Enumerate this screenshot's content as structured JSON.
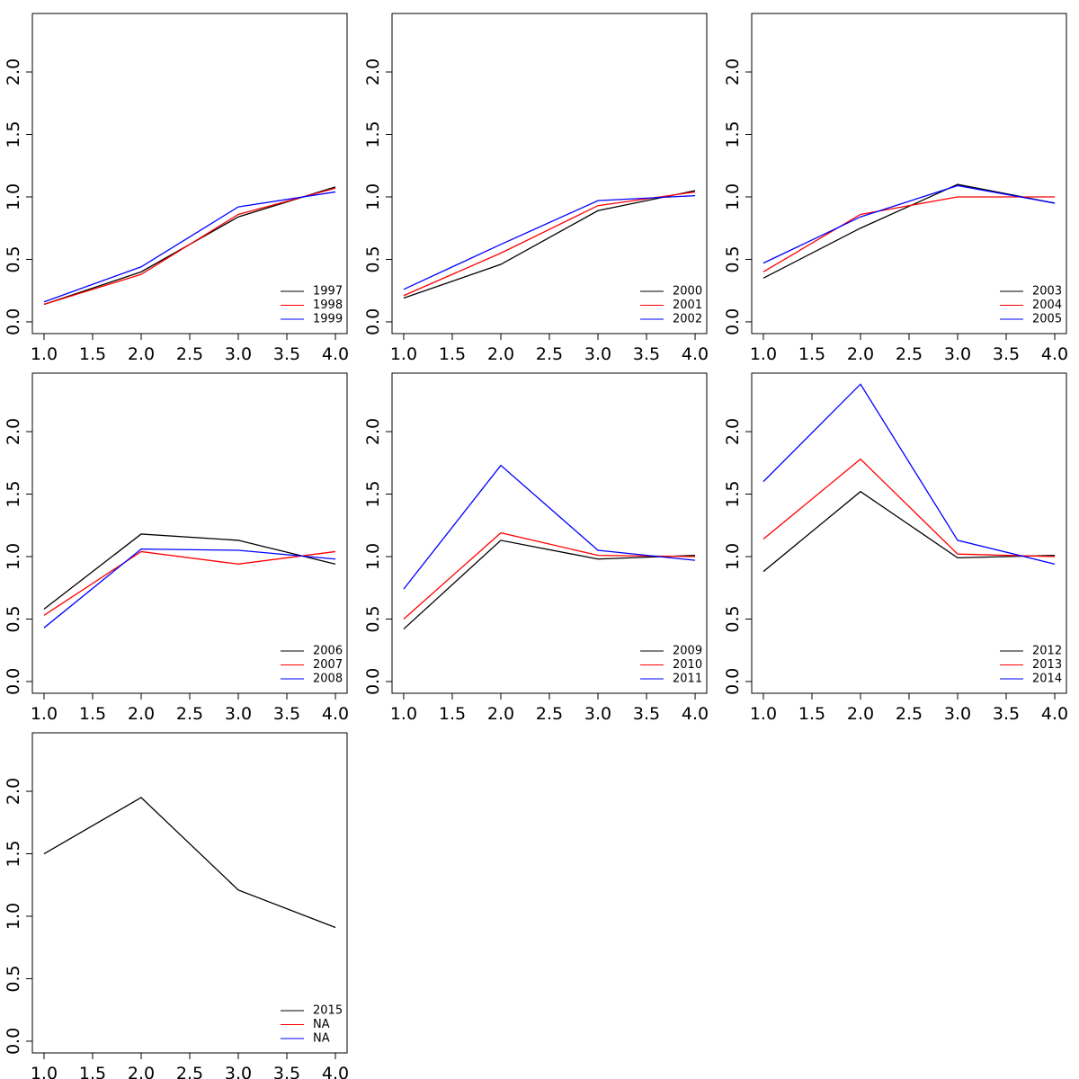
{
  "chart_data": [
    {
      "type": "line",
      "x": [
        1,
        2,
        3,
        4
      ],
      "xlim": [
        0.88,
        4.12
      ],
      "ylim": [
        -0.094,
        2.468
      ],
      "xticks": [
        {
          "value": 1,
          "label": "1.0"
        },
        {
          "value": 1.5,
          "label": "1.5"
        },
        {
          "value": 2,
          "label": "2.0"
        },
        {
          "value": 2.5,
          "label": "2.5"
        },
        {
          "value": 3,
          "label": "3.0"
        },
        {
          "value": 3.5,
          "label": "3.5"
        },
        {
          "value": 4,
          "label": "4.0"
        }
      ],
      "yticks": [
        {
          "value": 0,
          "label": "0.0"
        },
        {
          "value": 0.5,
          "label": "0.5"
        },
        {
          "value": 1,
          "label": "1.0"
        },
        {
          "value": 1.5,
          "label": "1.5"
        },
        {
          "value": 2,
          "label": "2.0"
        }
      ],
      "legend": "bottomright",
      "series": [
        {
          "name": "1997",
          "color": "#000000",
          "values": [
            0.14,
            0.4,
            0.84,
            1.08
          ]
        },
        {
          "name": "1998",
          "color": "#ff0000",
          "values": [
            0.14,
            0.38,
            0.86,
            1.07
          ]
        },
        {
          "name": "1999",
          "color": "#0000ff",
          "values": [
            0.16,
            0.44,
            0.92,
            1.04
          ]
        }
      ]
    },
    {
      "type": "line",
      "x": [
        1,
        2,
        3,
        4
      ],
      "xlim": [
        0.88,
        4.12
      ],
      "ylim": [
        -0.094,
        2.468
      ],
      "xticks": [
        {
          "value": 1,
          "label": "1.0"
        },
        {
          "value": 1.5,
          "label": "1.5"
        },
        {
          "value": 2,
          "label": "2.0"
        },
        {
          "value": 2.5,
          "label": "2.5"
        },
        {
          "value": 3,
          "label": "3.0"
        },
        {
          "value": 3.5,
          "label": "3.5"
        },
        {
          "value": 4,
          "label": "4.0"
        }
      ],
      "yticks": [
        {
          "value": 0,
          "label": "0.0"
        },
        {
          "value": 0.5,
          "label": "0.5"
        },
        {
          "value": 1,
          "label": "1.0"
        },
        {
          "value": 1.5,
          "label": "1.5"
        },
        {
          "value": 2,
          "label": "2.0"
        }
      ],
      "legend": "bottomright",
      "series": [
        {
          "name": "2000",
          "color": "#000000",
          "values": [
            0.19,
            0.46,
            0.89,
            1.05
          ]
        },
        {
          "name": "2001",
          "color": "#ff0000",
          "values": [
            0.21,
            0.55,
            0.93,
            1.04
          ]
        },
        {
          "name": "2002",
          "color": "#0000ff",
          "values": [
            0.26,
            0.62,
            0.97,
            1.01
          ]
        }
      ]
    },
    {
      "type": "line",
      "x": [
        1,
        2,
        3,
        4
      ],
      "xlim": [
        0.88,
        4.12
      ],
      "ylim": [
        -0.094,
        2.468
      ],
      "xticks": [
        {
          "value": 1,
          "label": "1.0"
        },
        {
          "value": 1.5,
          "label": "1.5"
        },
        {
          "value": 2,
          "label": "2.0"
        },
        {
          "value": 2.5,
          "label": "2.5"
        },
        {
          "value": 3,
          "label": "3.0"
        },
        {
          "value": 3.5,
          "label": "3.5"
        },
        {
          "value": 4,
          "label": "4.0"
        }
      ],
      "yticks": [
        {
          "value": 0,
          "label": "0.0"
        },
        {
          "value": 0.5,
          "label": "0.5"
        },
        {
          "value": 1,
          "label": "1.0"
        },
        {
          "value": 1.5,
          "label": "1.5"
        },
        {
          "value": 2,
          "label": "2.0"
        }
      ],
      "legend": "bottomright",
      "series": [
        {
          "name": "2003",
          "color": "#000000",
          "values": [
            0.35,
            0.75,
            1.1,
            0.95
          ]
        },
        {
          "name": "2004",
          "color": "#ff0000",
          "values": [
            0.4,
            0.86,
            1.0,
            1.0
          ]
        },
        {
          "name": "2005",
          "color": "#0000ff",
          "values": [
            0.47,
            0.84,
            1.09,
            0.95
          ]
        }
      ]
    },
    {
      "type": "line",
      "x": [
        1,
        2,
        3,
        4
      ],
      "xlim": [
        0.88,
        4.12
      ],
      "ylim": [
        -0.094,
        2.468
      ],
      "xticks": [
        {
          "value": 1,
          "label": "1.0"
        },
        {
          "value": 1.5,
          "label": "1.5"
        },
        {
          "value": 2,
          "label": "2.0"
        },
        {
          "value": 2.5,
          "label": "2.5"
        },
        {
          "value": 3,
          "label": "3.0"
        },
        {
          "value": 3.5,
          "label": "3.5"
        },
        {
          "value": 4,
          "label": "4.0"
        }
      ],
      "yticks": [
        {
          "value": 0,
          "label": "0.0"
        },
        {
          "value": 0.5,
          "label": "0.5"
        },
        {
          "value": 1,
          "label": "1.0"
        },
        {
          "value": 1.5,
          "label": "1.5"
        },
        {
          "value": 2,
          "label": "2.0"
        }
      ],
      "legend": "bottomright",
      "series": [
        {
          "name": "2006",
          "color": "#000000",
          "values": [
            0.58,
            1.18,
            1.13,
            0.94
          ]
        },
        {
          "name": "2007",
          "color": "#ff0000",
          "values": [
            0.53,
            1.04,
            0.94,
            1.04
          ]
        },
        {
          "name": "2008",
          "color": "#0000ff",
          "values": [
            0.43,
            1.06,
            1.05,
            0.98
          ]
        }
      ]
    },
    {
      "type": "line",
      "x": [
        1,
        2,
        3,
        4
      ],
      "xlim": [
        0.88,
        4.12
      ],
      "ylim": [
        -0.094,
        2.468
      ],
      "xticks": [
        {
          "value": 1,
          "label": "1.0"
        },
        {
          "value": 1.5,
          "label": "1.5"
        },
        {
          "value": 2,
          "label": "2.0"
        },
        {
          "value": 2.5,
          "label": "2.5"
        },
        {
          "value": 3,
          "label": "3.0"
        },
        {
          "value": 3.5,
          "label": "3.5"
        },
        {
          "value": 4,
          "label": "4.0"
        }
      ],
      "yticks": [
        {
          "value": 0,
          "label": "0.0"
        },
        {
          "value": 0.5,
          "label": "0.5"
        },
        {
          "value": 1,
          "label": "1.0"
        },
        {
          "value": 1.5,
          "label": "1.5"
        },
        {
          "value": 2,
          "label": "2.0"
        }
      ],
      "legend": "bottomright",
      "series": [
        {
          "name": "2009",
          "color": "#000000",
          "values": [
            0.42,
            1.13,
            0.98,
            1.01
          ]
        },
        {
          "name": "2010",
          "color": "#ff0000",
          "values": [
            0.5,
            1.19,
            1.01,
            1.0
          ]
        },
        {
          "name": "2011",
          "color": "#0000ff",
          "values": [
            0.74,
            1.73,
            1.05,
            0.97
          ]
        }
      ]
    },
    {
      "type": "line",
      "x": [
        1,
        2,
        3,
        4
      ],
      "xlim": [
        0.88,
        4.12
      ],
      "ylim": [
        -0.094,
        2.468
      ],
      "xticks": [
        {
          "value": 1,
          "label": "1.0"
        },
        {
          "value": 1.5,
          "label": "1.5"
        },
        {
          "value": 2,
          "label": "2.0"
        },
        {
          "value": 2.5,
          "label": "2.5"
        },
        {
          "value": 3,
          "label": "3.0"
        },
        {
          "value": 3.5,
          "label": "3.5"
        },
        {
          "value": 4,
          "label": "4.0"
        }
      ],
      "yticks": [
        {
          "value": 0,
          "label": "0.0"
        },
        {
          "value": 0.5,
          "label": "0.5"
        },
        {
          "value": 1,
          "label": "1.0"
        },
        {
          "value": 1.5,
          "label": "1.5"
        },
        {
          "value": 2,
          "label": "2.0"
        }
      ],
      "legend": "bottomright",
      "series": [
        {
          "name": "2012",
          "color": "#000000",
          "values": [
            0.88,
            1.52,
            0.99,
            1.01
          ]
        },
        {
          "name": "2013",
          "color": "#ff0000",
          "values": [
            1.14,
            1.78,
            1.02,
            1.0
          ]
        },
        {
          "name": "2014",
          "color": "#0000ff",
          "values": [
            1.6,
            2.38,
            1.13,
            0.94
          ]
        }
      ]
    },
    {
      "type": "line",
      "x": [
        1,
        2,
        3,
        4
      ],
      "xlim": [
        0.88,
        4.12
      ],
      "ylim": [
        -0.094,
        2.468
      ],
      "xticks": [
        {
          "value": 1,
          "label": "1.0"
        },
        {
          "value": 1.5,
          "label": "1.5"
        },
        {
          "value": 2,
          "label": "2.0"
        },
        {
          "value": 2.5,
          "label": "2.5"
        },
        {
          "value": 3,
          "label": "3.0"
        },
        {
          "value": 3.5,
          "label": "3.5"
        },
        {
          "value": 4,
          "label": "4.0"
        }
      ],
      "yticks": [
        {
          "value": 0,
          "label": "0.0"
        },
        {
          "value": 0.5,
          "label": "0.5"
        },
        {
          "value": 1,
          "label": "1.0"
        },
        {
          "value": 1.5,
          "label": "1.5"
        },
        {
          "value": 2,
          "label": "2.0"
        }
      ],
      "legend": "bottomright",
      "series": [
        {
          "name": "2015",
          "color": "#000000",
          "values": [
            1.5,
            1.95,
            1.21,
            0.91
          ]
        },
        {
          "name": "NA",
          "color": "#ff0000",
          "values": [
            null,
            null,
            null,
            null
          ]
        },
        {
          "name": "NA",
          "color": "#0000ff",
          "values": [
            null,
            null,
            null,
            null
          ]
        }
      ]
    }
  ]
}
